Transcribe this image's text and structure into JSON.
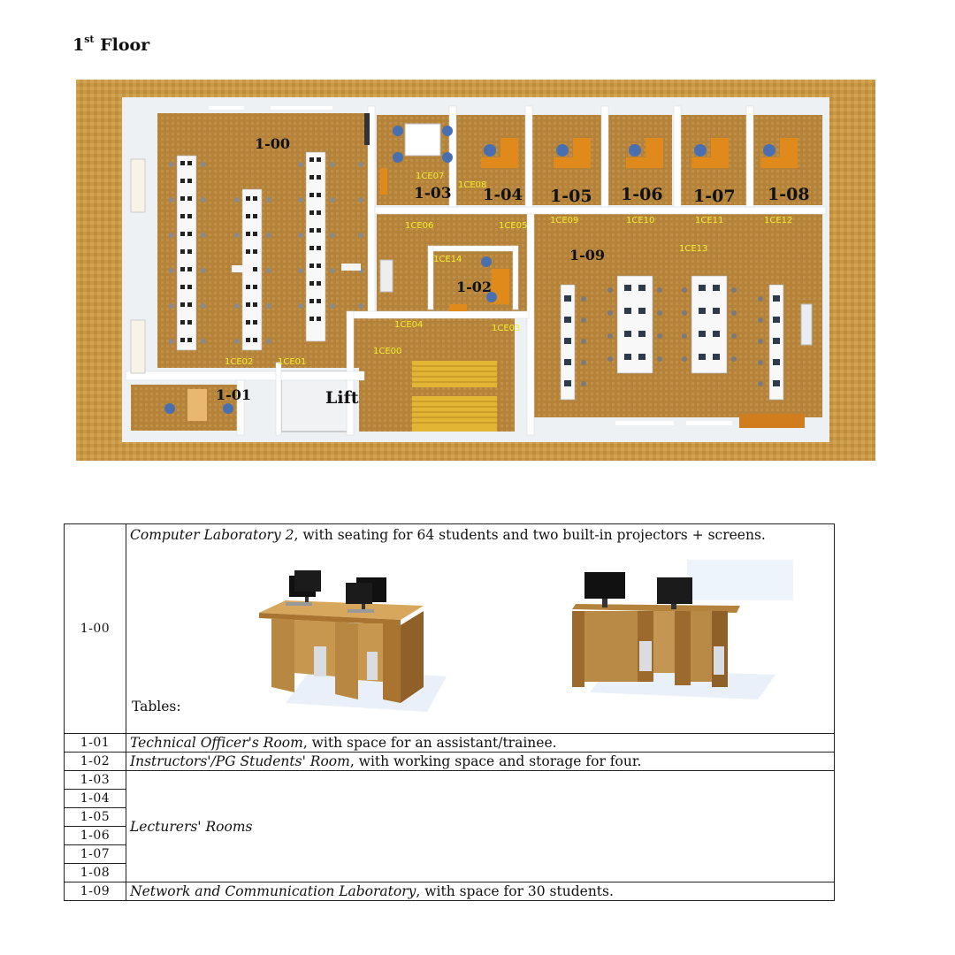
{
  "heading": {
    "prefix": "1",
    "sup": "st",
    "suffix": " Floor"
  },
  "floorplan": {
    "rooms": [
      {
        "id": "1-00"
      },
      {
        "id": "1-01"
      },
      {
        "id": "1-02"
      },
      {
        "id": "1-03"
      },
      {
        "id": "1-04"
      },
      {
        "id": "1-05"
      },
      {
        "id": "1-06"
      },
      {
        "id": "1-07"
      },
      {
        "id": "1-08"
      },
      {
        "id": "1-09"
      }
    ],
    "lift_label": "Lift",
    "access_points": [
      "1CE00",
      "1CE01",
      "1CE02",
      "1CE03",
      "1CE04",
      "1CE05",
      "1CE06",
      "1CE07",
      "1CE08",
      "1CE09",
      "1CE10",
      "1CE11",
      "1CE12",
      "1CE13",
      "1CE14"
    ],
    "colors": {
      "floor": "#c9963c",
      "wall": "#f4f6f8",
      "desk": "#e08a1c",
      "chair": "#4a6fb0",
      "ap": "#f2ef2a"
    }
  },
  "table": {
    "row_1_00": {
      "num": "1-00",
      "name": "Computer Laboratory 2",
      "rest": ", with seating for 64 students and two built-in projectors + screens.",
      "tables_label": "Tables:"
    },
    "row_1_01": {
      "num": "1-01",
      "name": "Technical Officer's Room",
      "rest": ", with space for an assistant/trainee."
    },
    "row_1_02": {
      "num": "1-02",
      "name": "Instructors'/PG Students' Room",
      "rest": ", with working space and storage for four."
    },
    "lecturers": {
      "nums": [
        "1-03",
        "1-04",
        "1-05",
        "1-06",
        "1-07",
        "1-08"
      ],
      "label": "Lecturers' Rooms"
    },
    "row_1_09": {
      "num": "1-09",
      "name": "Network and Communication Laboratory",
      "rest": ", with space for 30 students."
    }
  }
}
